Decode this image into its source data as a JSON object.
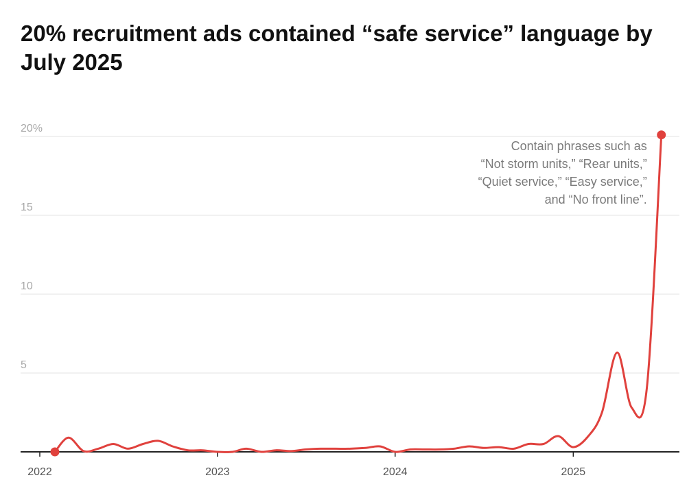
{
  "title": "20% recruitment ads contained “safe service” language by July 2025",
  "chart_data": {
    "type": "line",
    "title": "20% recruitment ads contained “safe service” language by July 2025",
    "xlabel": "",
    "ylabel": "",
    "ylim": [
      0,
      20
    ],
    "xlim": [
      "2021-12-01",
      "2025-07-31"
    ],
    "y_ticks": [
      0,
      5,
      10,
      15,
      20
    ],
    "y_tick_labels": [
      "",
      "5",
      "10",
      "15",
      "20%"
    ],
    "x_ticks": [
      "2022-01-01",
      "2023-01-01",
      "2024-01-01",
      "2025-01-01"
    ],
    "x_tick_labels": [
      "2022",
      "2023",
      "2024",
      "2025"
    ],
    "grid": true,
    "color": "#e0413d",
    "series": [
      {
        "x": [
          "2022-02-01",
          "2022-03-01",
          "2022-04-01",
          "2022-05-01",
          "2022-06-01",
          "2022-07-01",
          "2022-08-01",
          "2022-09-01",
          "2022-10-01",
          "2022-11-01",
          "2022-12-01",
          "2023-01-01",
          "2023-02-01",
          "2023-03-01",
          "2023-04-01",
          "2023-05-01",
          "2023-06-01",
          "2023-07-01",
          "2023-08-01",
          "2023-09-01",
          "2023-10-01",
          "2023-11-01",
          "2023-12-01",
          "2024-01-01",
          "2024-02-01",
          "2024-03-01",
          "2024-04-01",
          "2024-05-01",
          "2024-06-01",
          "2024-07-01",
          "2024-08-01",
          "2024-09-01",
          "2024-10-01",
          "2024-11-01",
          "2024-12-01",
          "2025-01-01",
          "2025-02-01",
          "2025-03-01",
          "2025-04-01",
          "2025-05-01",
          "2025-06-01",
          "2025-07-01"
        ],
        "values": [
          0,
          0.9,
          0.05,
          0.2,
          0.5,
          0.2,
          0.5,
          0.7,
          0.35,
          0.1,
          0.1,
          0.0,
          0.0,
          0.2,
          0.0,
          0.1,
          0.05,
          0.15,
          0.2,
          0.2,
          0.2,
          0.25,
          0.35,
          0.0,
          0.15,
          0.15,
          0.15,
          0.2,
          0.35,
          0.25,
          0.3,
          0.2,
          0.5,
          0.5,
          1.0,
          0.3,
          1.0,
          2.5,
          6.3,
          2.8,
          4.0,
          20.1
        ]
      }
    ],
    "highlighted_points": [
      {
        "x": "2022-02-01",
        "y": 0
      },
      {
        "x": "2025-07-01",
        "y": 20.1
      }
    ],
    "annotation": {
      "lines": [
        "Contain phrases such as",
        "“Not storm units,” “Rear units,”",
        "“Quiet service,” “Easy service,”",
        "and “No front line”."
      ],
      "x": "2025-07-01",
      "y": 20
    }
  }
}
